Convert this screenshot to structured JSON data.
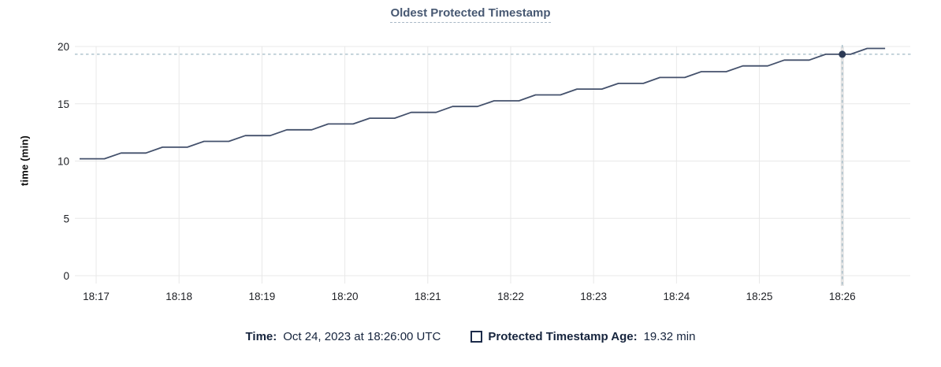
{
  "header": {
    "title": "Oldest Protected Timestamp"
  },
  "colors": {
    "title": "#475872",
    "title_underline": "#a9b8c6",
    "series_line": "#44516c",
    "crosshair_dot": "#2c3a55",
    "crosshair_dash": "#a2bac6",
    "gridline": "#e8e8e8",
    "hover_band": "#e2e2e2",
    "tick_text": "#202227",
    "legend_text": "#16243d"
  },
  "legend": {
    "time_label": "Time:",
    "time_value": "Oct 24, 2023 at 18:26:00 UTC",
    "series_label": "Protected Timestamp Age:",
    "series_value": "19.32 min"
  },
  "chart_data": {
    "type": "line",
    "title": "Oldest Protected Timestamp",
    "xlabel": "",
    "ylabel": "time (min)",
    "grid": true,
    "legend_position": "bottom",
    "x_unit": "seconds after 18:17:00 UTC",
    "xlim": [
      -15.4,
      589.2
    ],
    "ylim": [
      0,
      20
    ],
    "y_ticks": [
      0,
      5,
      10,
      15,
      20
    ],
    "x_ticks": [
      {
        "t": 0,
        "label": "18:17"
      },
      {
        "t": 60,
        "label": "18:18"
      },
      {
        "t": 120,
        "label": "18:19"
      },
      {
        "t": 180,
        "label": "18:20"
      },
      {
        "t": 240,
        "label": "18:21"
      },
      {
        "t": 300,
        "label": "18:22"
      },
      {
        "t": 360,
        "label": "18:23"
      },
      {
        "t": 420,
        "label": "18:24"
      },
      {
        "t": 480,
        "label": "18:25"
      },
      {
        "t": 540,
        "label": "18:26"
      }
    ],
    "series": [
      {
        "name": "Protected Timestamp Age",
        "points": [
          [
            -12,
            10.2
          ],
          [
            6,
            10.2
          ],
          [
            18,
            10.7
          ],
          [
            36,
            10.7
          ],
          [
            48,
            11.21
          ],
          [
            66,
            11.21
          ],
          [
            78,
            11.72
          ],
          [
            96,
            11.72
          ],
          [
            108,
            12.22
          ],
          [
            126,
            12.22
          ],
          [
            138,
            12.73
          ],
          [
            156,
            12.73
          ],
          [
            168,
            13.24
          ],
          [
            186,
            13.24
          ],
          [
            198,
            13.74
          ],
          [
            216,
            13.74
          ],
          [
            228,
            14.25
          ],
          [
            246,
            14.25
          ],
          [
            258,
            14.76
          ],
          [
            276,
            14.76
          ],
          [
            288,
            15.26
          ],
          [
            306,
            15.26
          ],
          [
            318,
            15.77
          ],
          [
            336,
            15.77
          ],
          [
            348,
            16.28
          ],
          [
            366,
            16.28
          ],
          [
            378,
            16.78
          ],
          [
            396,
            16.78
          ],
          [
            408,
            17.29
          ],
          [
            426,
            17.29
          ],
          [
            438,
            17.8
          ],
          [
            456,
            17.8
          ],
          [
            468,
            18.3
          ],
          [
            486,
            18.3
          ],
          [
            498,
            18.81
          ],
          [
            516,
            18.81
          ],
          [
            528,
            19.32
          ],
          [
            546,
            19.32
          ],
          [
            558,
            19.83
          ],
          [
            571,
            19.83
          ]
        ]
      }
    ],
    "crosshair": {
      "t": 540,
      "value": 19.32,
      "time_label": "Oct 24, 2023 at 18:26:00 UTC",
      "value_label": "19.32 min"
    }
  }
}
